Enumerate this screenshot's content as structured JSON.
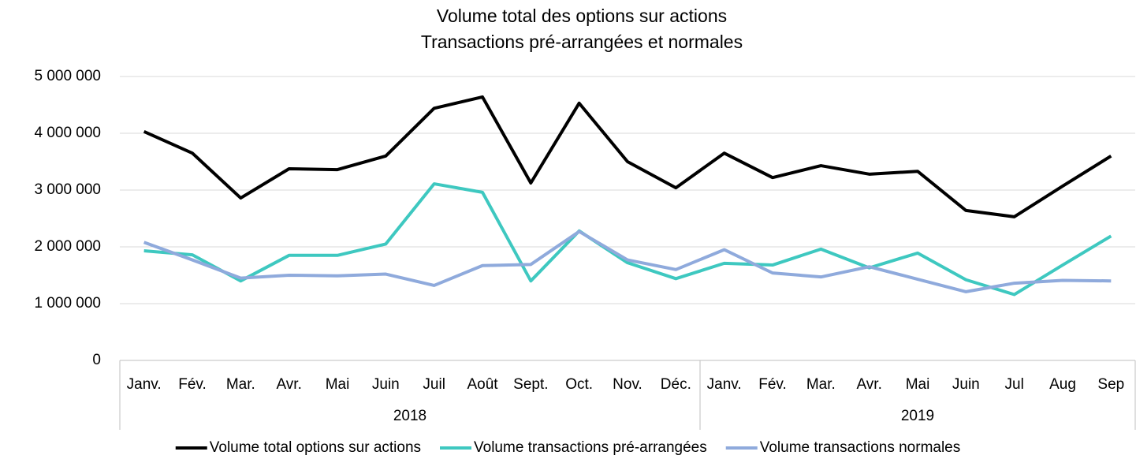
{
  "chart_data": {
    "type": "line",
    "title": "Volume total des options sur actions",
    "subtitle": "Transactions pré-arrangées et normales",
    "categories": [
      "Janv.",
      "Fév.",
      "Mar.",
      "Avr.",
      "Mai",
      "Juin",
      "Juil",
      "Août",
      "Sept.",
      "Oct.",
      "Nov.",
      "Déc.",
      "Janv.",
      "Fév.",
      "Mar.",
      "Avr.",
      "Mai",
      "Juin",
      "Jul",
      "Aug",
      "Sep"
    ],
    "groups": [
      {
        "label": "2018",
        "start": 0
      },
      {
        "label": "2019",
        "start": 12
      }
    ],
    "series": [
      {
        "name": "Volume total options sur actions",
        "color": "#000000",
        "values": [
          4030000,
          3650000,
          2860000,
          3375000,
          3360000,
          3600000,
          4440000,
          4640000,
          3125000,
          4530000,
          3500000,
          3040000,
          3650000,
          3220000,
          3430000,
          3280000,
          3330000,
          2640000,
          2530000,
          3070000,
          3600000
        ]
      },
      {
        "name": "Volume transactions pré-arrangées",
        "color": "#3ec8c0",
        "values": [
          1930000,
          1860000,
          1400000,
          1850000,
          1850000,
          2050000,
          3110000,
          2960000,
          1400000,
          2280000,
          1720000,
          1440000,
          1710000,
          1680000,
          1960000,
          1630000,
          1890000,
          1420000,
          1160000,
          1680000,
          2190000
        ]
      },
      {
        "name": "Volume transactions normales",
        "color": "#8faadc",
        "values": [
          2080000,
          1770000,
          1450000,
          1500000,
          1490000,
          1520000,
          1320000,
          1670000,
          1690000,
          2270000,
          1770000,
          1600000,
          1950000,
          1540000,
          1470000,
          1650000,
          1430000,
          1210000,
          1360000,
          1410000,
          1400000
        ]
      }
    ],
    "ylim": [
      0,
      5000000
    ],
    "yticks": [
      0,
      {
        "value": 1000000,
        "label": "1 000 000"
      },
      {
        "value": 2000000,
        "label": "2 000 000"
      },
      {
        "value": 3000000,
        "label": "3 000 000"
      },
      {
        "value": 4000000,
        "label": "4 000 000"
      },
      {
        "value": 5000000,
        "label": "5 000 000"
      }
    ],
    "grid": true,
    "legend": "bottom"
  }
}
